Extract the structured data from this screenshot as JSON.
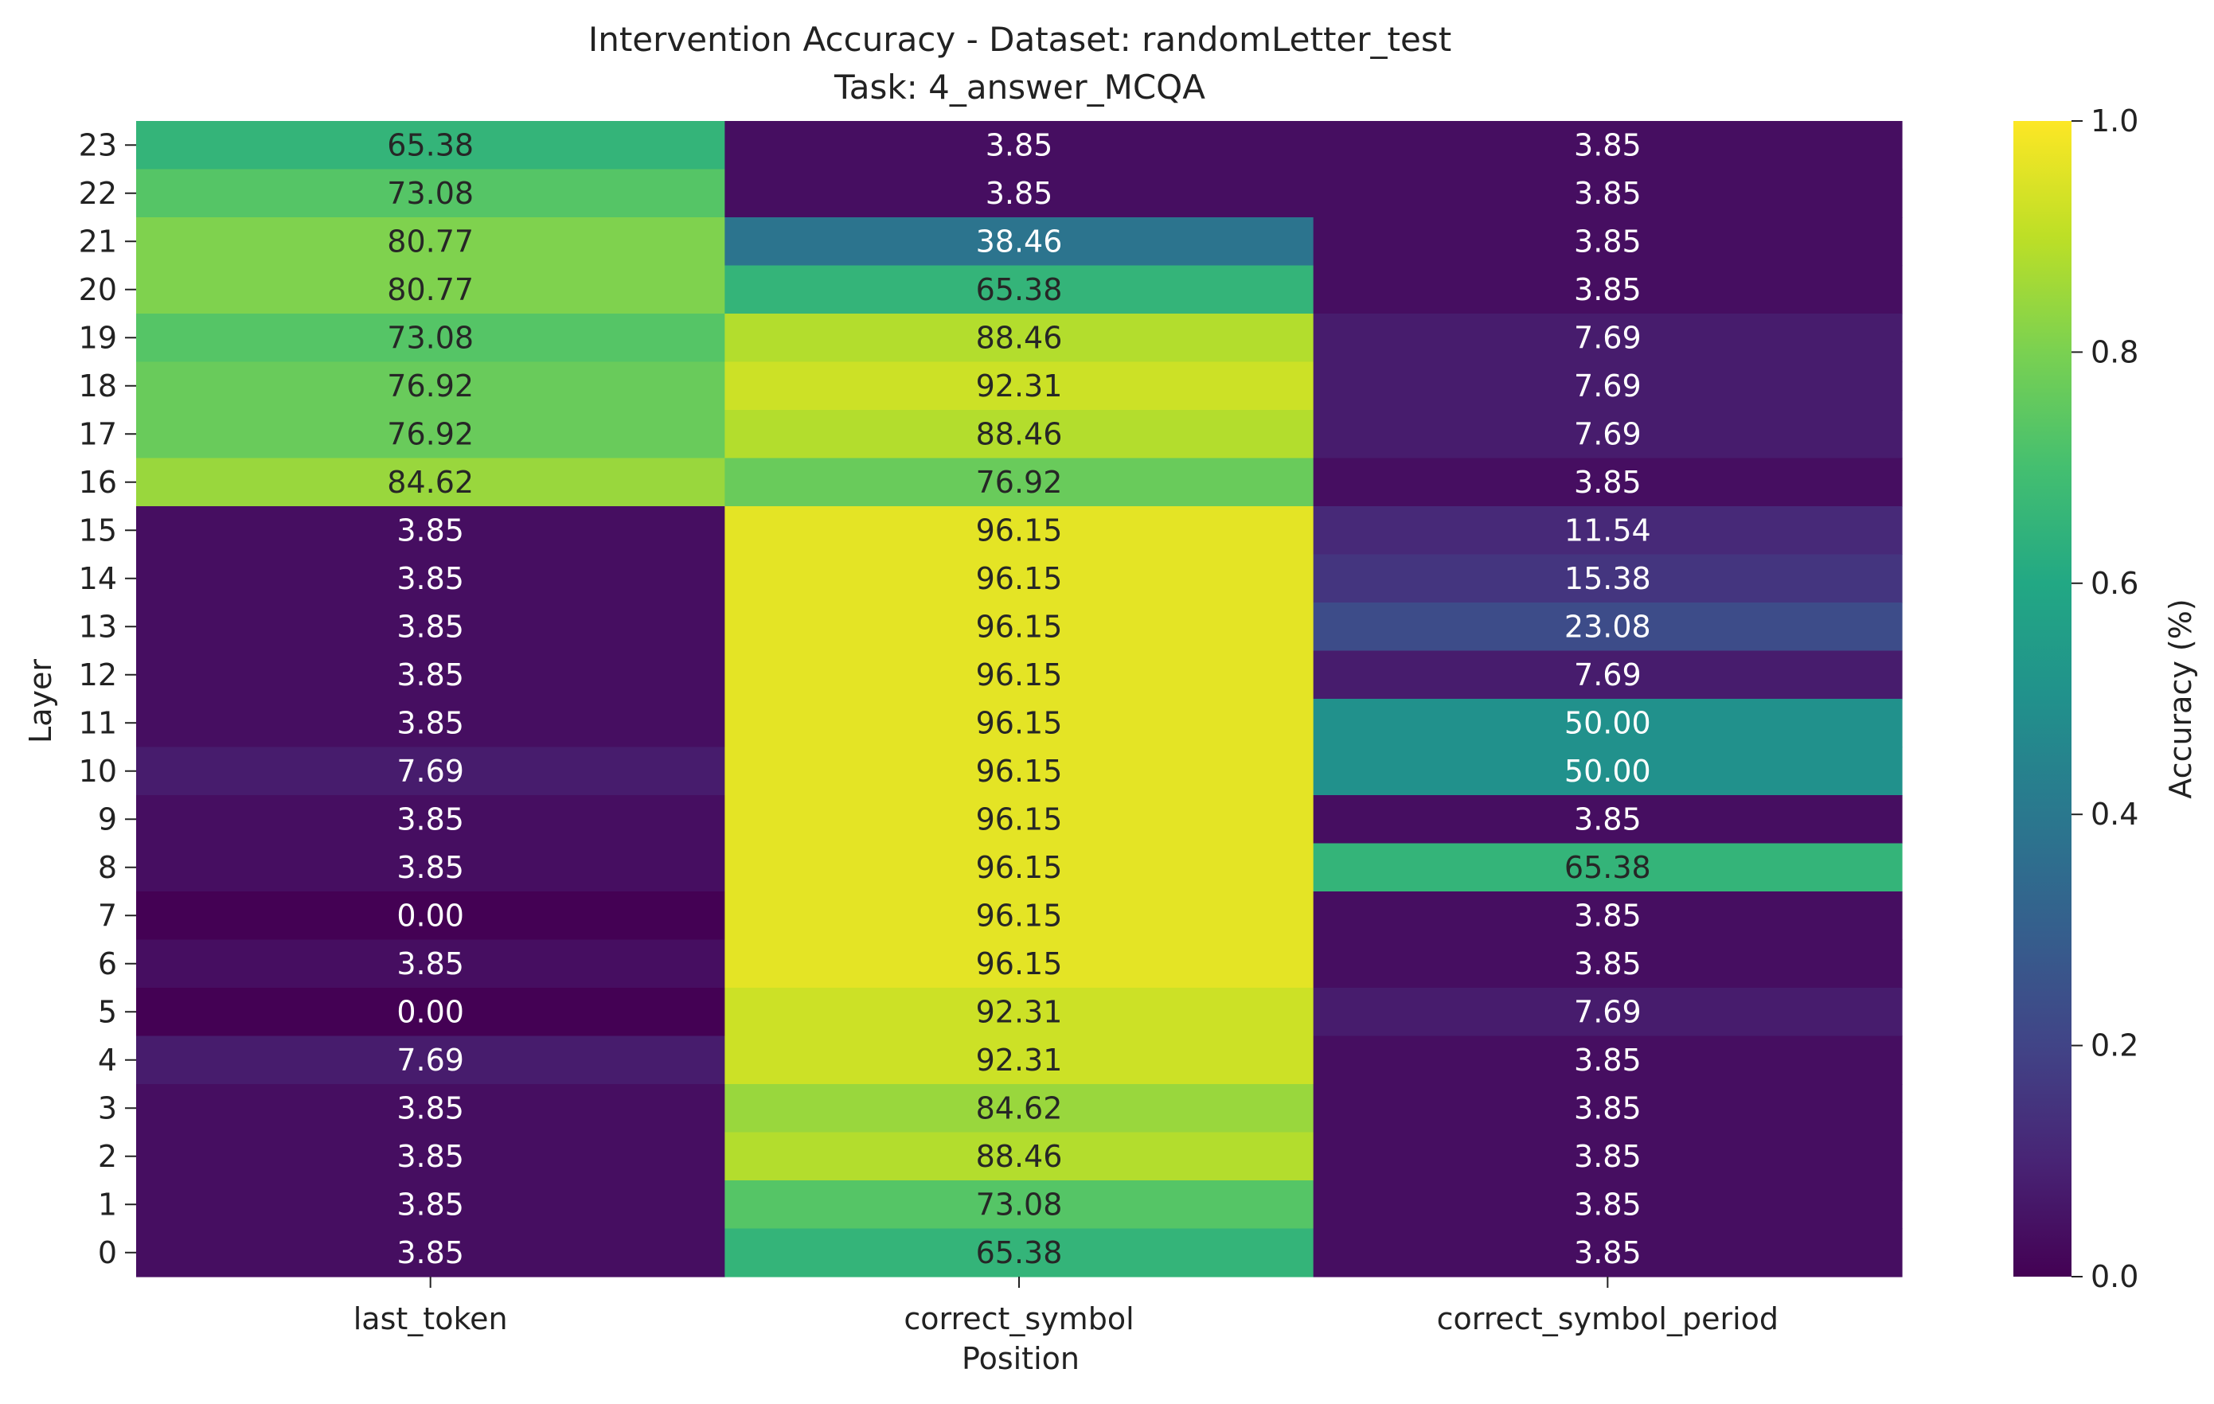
{
  "chart_data": {
    "type": "heatmap",
    "title": "Intervention Accuracy - Dataset: randomLetter_test",
    "subtitle": "Task: 4_answer_MCQA",
    "xlabel": "Position",
    "ylabel": "Layer",
    "x_categories": [
      "last_token",
      "correct_symbol",
      "correct_symbol_period"
    ],
    "y_categories": [
      "23",
      "22",
      "21",
      "20",
      "19",
      "18",
      "17",
      "16",
      "15",
      "14",
      "13",
      "12",
      "11",
      "10",
      "9",
      "8",
      "7",
      "6",
      "5",
      "4",
      "3",
      "2",
      "1",
      "0"
    ],
    "values": [
      [
        65.38,
        3.85,
        3.85
      ],
      [
        73.08,
        3.85,
        3.85
      ],
      [
        80.77,
        38.46,
        3.85
      ],
      [
        80.77,
        65.38,
        3.85
      ],
      [
        73.08,
        88.46,
        7.69
      ],
      [
        76.92,
        92.31,
        7.69
      ],
      [
        76.92,
        88.46,
        7.69
      ],
      [
        84.62,
        76.92,
        3.85
      ],
      [
        3.85,
        96.15,
        11.54
      ],
      [
        3.85,
        96.15,
        15.38
      ],
      [
        3.85,
        96.15,
        23.08
      ],
      [
        3.85,
        96.15,
        7.69
      ],
      [
        3.85,
        96.15,
        50.0
      ],
      [
        7.69,
        96.15,
        50.0
      ],
      [
        3.85,
        96.15,
        3.85
      ],
      [
        3.85,
        96.15,
        65.38
      ],
      [
        0.0,
        96.15,
        3.85
      ],
      [
        3.85,
        96.15,
        3.85
      ],
      [
        0.0,
        92.31,
        7.69
      ],
      [
        7.69,
        92.31,
        3.85
      ],
      [
        3.85,
        84.62,
        3.85
      ],
      [
        3.85,
        88.46,
        3.85
      ],
      [
        3.85,
        73.08,
        3.85
      ],
      [
        3.85,
        65.38,
        3.85
      ]
    ],
    "colorbar": {
      "label": "Accuracy (%)",
      "range": [
        0.0,
        1.0
      ],
      "ticks": [
        "0.0",
        "0.2",
        "0.4",
        "0.6",
        "0.8",
        "1.0"
      ],
      "colormap": "viridis"
    },
    "grid": false
  }
}
